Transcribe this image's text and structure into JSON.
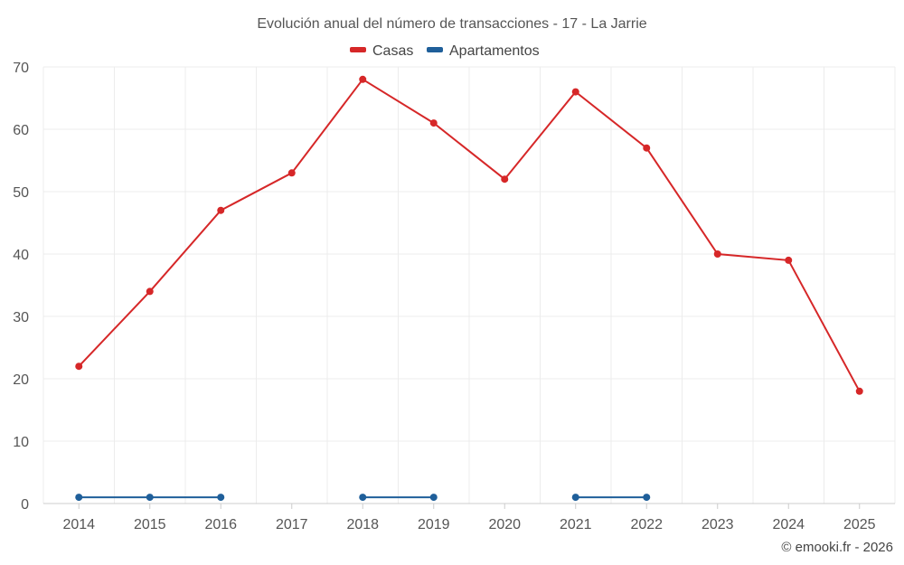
{
  "chart_data": {
    "type": "line",
    "title": "Evolución anual del número de transacciones - 17 - La Jarrie",
    "xlabel": "",
    "ylabel": "",
    "categories": [
      "2014",
      "2015",
      "2016",
      "2017",
      "2018",
      "2019",
      "2020",
      "2021",
      "2022",
      "2023",
      "2024",
      "2025"
    ],
    "ylim": [
      0,
      70
    ],
    "yticks": [
      0,
      10,
      20,
      30,
      40,
      50,
      60,
      70
    ],
    "grid": true,
    "legend_position": "top-center",
    "series": [
      {
        "name": "Casas",
        "color": "#d62728",
        "values": [
          22,
          34,
          47,
          53,
          68,
          61,
          52,
          66,
          57,
          40,
          39,
          18
        ]
      },
      {
        "name": "Apartamentos",
        "color": "#1f5f9a",
        "values": [
          1,
          1,
          1,
          null,
          1,
          1,
          null,
          1,
          1,
          null,
          null,
          null
        ]
      }
    ]
  },
  "credit": "© emooki.fr - 2026"
}
